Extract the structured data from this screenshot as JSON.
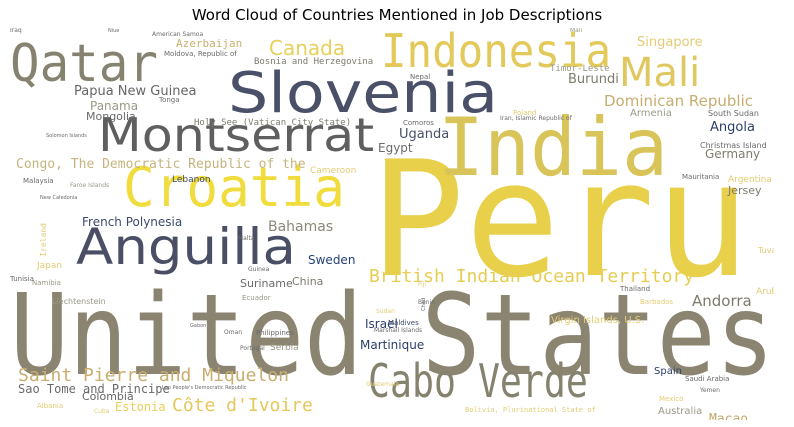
{
  "chart_data": {
    "type": "wordcloud",
    "title": "Word Cloud of Countries Mentioned in Job Descriptions",
    "words": [
      {
        "text": "Peru",
        "color": "#e8d04a"
      },
      {
        "text": "United States",
        "color": "#8a8470"
      },
      {
        "text": "Slovenia",
        "color": "#4a5068"
      },
      {
        "text": "Indonesia",
        "color": "#e3c95a"
      },
      {
        "text": "India",
        "color": "#d9c45a"
      },
      {
        "text": "Qatar",
        "color": "#85836f"
      },
      {
        "text": "Montserrat",
        "color": "#5f5f5f"
      },
      {
        "text": "Croatia",
        "color": "#f0dc3c"
      },
      {
        "text": "Anguilla",
        "color": "#4a4f66"
      },
      {
        "text": "Cabo Verde",
        "color": "#85826e"
      },
      {
        "text": "Mali",
        "color": "#e0c860"
      },
      {
        "text": "British Indian Ocean Territory",
        "color": "#e6cd52"
      },
      {
        "text": "Saint Pierre and Miquelon",
        "color": "#c9ad70"
      },
      {
        "text": "Côte d'Ivoire",
        "color": "#e5c75a"
      },
      {
        "text": "Canada",
        "color": "#e6d05a"
      },
      {
        "text": "Dominican Republic",
        "color": "#c4ae70"
      },
      {
        "text": "Congo, The Democratic Republic of the",
        "color": "#c6b47e"
      },
      {
        "text": "French Polynesia",
        "color": "#3e4a6a"
      },
      {
        "text": "Bahamas",
        "color": "#8c8878"
      },
      {
        "text": "Andorra",
        "color": "#7d7b6e"
      },
      {
        "text": "Papua New Guinea",
        "color": "#666666"
      },
      {
        "text": "Singapore",
        "color": "#e3cc74"
      },
      {
        "text": "Burundi",
        "color": "#7d7b6e"
      },
      {
        "text": "Uganda",
        "color": "#4a5068"
      },
      {
        "text": "Egypt",
        "color": "#6a6a6a"
      },
      {
        "text": "Angola",
        "color": "#2e3e6a"
      },
      {
        "text": "Germany",
        "color": "#7d7b6e"
      },
      {
        "text": "Sweden",
        "color": "#26407a"
      },
      {
        "text": "Suriname",
        "color": "#6a6a6a"
      },
      {
        "text": "China",
        "color": "#7d7b6e"
      },
      {
        "text": "Martinique",
        "color": "#2e3e6a"
      },
      {
        "text": "Israel",
        "color": "#2e3e6a"
      },
      {
        "text": "Sao Tome and Principe",
        "color": "#6a6a6a"
      },
      {
        "text": "Macao",
        "color": "#c4a870"
      },
      {
        "text": "Azerbaijan",
        "color": "#c7b070"
      },
      {
        "text": "Estonia",
        "color": "#e8d05a"
      },
      {
        "text": "Panama",
        "color": "#9a9888"
      },
      {
        "text": "Mongolia",
        "color": "#6a6a6a"
      },
      {
        "text": "Jersey",
        "color": "#7d7b6e"
      },
      {
        "text": "Colombia",
        "color": "#666666"
      },
      {
        "text": "Holy See (Vatican City State)",
        "color": "#7d7b6e"
      },
      {
        "text": "Bosnia and Herzegovina",
        "color": "#7d7b6e"
      },
      {
        "text": "Timor-Leste",
        "color": "#9a9888"
      },
      {
        "text": "Lebanon",
        "color": "#3e4a6a"
      },
      {
        "text": "Cameroon",
        "color": "#e3cc74"
      },
      {
        "text": "Serbia",
        "color": "#9a9888"
      },
      {
        "text": "Spain",
        "color": "#2e3e6a"
      },
      {
        "text": "Armenia",
        "color": "#9a9888"
      },
      {
        "text": "Australia",
        "color": "#9a9888"
      },
      {
        "text": "Argentina",
        "color": "#e3cc74"
      },
      {
        "text": "Japan",
        "color": "#e3cc74"
      },
      {
        "text": "Virgin Islands, U.S.",
        "color": "#e3cc74"
      },
      {
        "text": "Christmas Island",
        "color": "#6a6a6a"
      },
      {
        "text": "South Sudan",
        "color": "#6a6a6a"
      },
      {
        "text": "Liechtenstein",
        "color": "#9a9888"
      },
      {
        "text": "Malaysia",
        "color": "#6a6a6a"
      },
      {
        "text": "Tonga",
        "color": "#6a6a6a"
      },
      {
        "text": "Ireland",
        "color": "#e3cc74"
      },
      {
        "text": "Philippines",
        "color": "#6a6a6a"
      },
      {
        "text": "Ecuador",
        "color": "#9a9888"
      },
      {
        "text": "Maldives",
        "color": "#3e4a6a"
      },
      {
        "text": "Thailand",
        "color": "#6a6a6a"
      },
      {
        "text": "Aruba",
        "color": "#e3cc74"
      },
      {
        "text": "Poland",
        "color": "#e3cc74"
      },
      {
        "text": "Comoros",
        "color": "#6a6a6a"
      },
      {
        "text": "Nepal",
        "color": "#6a6a6a"
      },
      {
        "text": "Tuvalu",
        "color": "#e3cc74"
      },
      {
        "text": "Namibia",
        "color": "#9a9888"
      },
      {
        "text": "Tunisia",
        "color": "#6a6a6a"
      },
      {
        "text": "Albania",
        "color": "#e3cc74"
      },
      {
        "text": "Mexico",
        "color": "#e3cc74"
      },
      {
        "text": "Saudi Arabia",
        "color": "#6a6a6a"
      },
      {
        "text": "Mauritania",
        "color": "#6a6a6a"
      },
      {
        "text": "Moldova, Republic of",
        "color": "#6a6a6a"
      },
      {
        "text": "American Samoa",
        "color": "#6a6a6a"
      },
      {
        "text": "Faroe Islands",
        "color": "#9a9888"
      },
      {
        "text": "Marshall Islands",
        "color": "#6a6a6a"
      },
      {
        "text": "Bolivia, Plurinational State of",
        "color": "#e3cc74"
      },
      {
        "text": "Portugal",
        "color": "#6a6a6a"
      },
      {
        "text": "Mali",
        "color": "#9a9888"
      },
      {
        "text": "Oman",
        "color": "#6a6a6a"
      },
      {
        "text": "Iran, Islamic Republic of",
        "color": "#6a6a6a"
      },
      {
        "text": "Lao People's Democratic Republic",
        "color": "#6a6a6a"
      },
      {
        "text": "Sudan",
        "color": "#e3cc74"
      },
      {
        "text": "Malta",
        "color": "#6a6a6a"
      },
      {
        "text": "Guinea",
        "color": "#6a6a6a"
      },
      {
        "text": "Benin",
        "color": "#6a6a6a"
      },
      {
        "text": "New Caledonia",
        "color": "#6a6a6a"
      },
      {
        "text": "Solomon Islands",
        "color": "#6a6a6a"
      },
      {
        "text": "Guatemala",
        "color": "#e3cc74"
      },
      {
        "text": "Cuba",
        "color": "#e3cc74"
      },
      {
        "text": "Barbados",
        "color": "#e3cc74"
      },
      {
        "text": "Niue",
        "color": "#6a6a6a"
      },
      {
        "text": "Chad",
        "color": "#6a6a6a"
      },
      {
        "text": "Fiji",
        "color": "#e3cc74"
      },
      {
        "text": "Yemen",
        "color": "#6a6a6a"
      },
      {
        "text": "Gabon",
        "color": "#6a6a6a"
      },
      {
        "text": "Iraq",
        "color": "#6a6a6a"
      }
    ]
  }
}
